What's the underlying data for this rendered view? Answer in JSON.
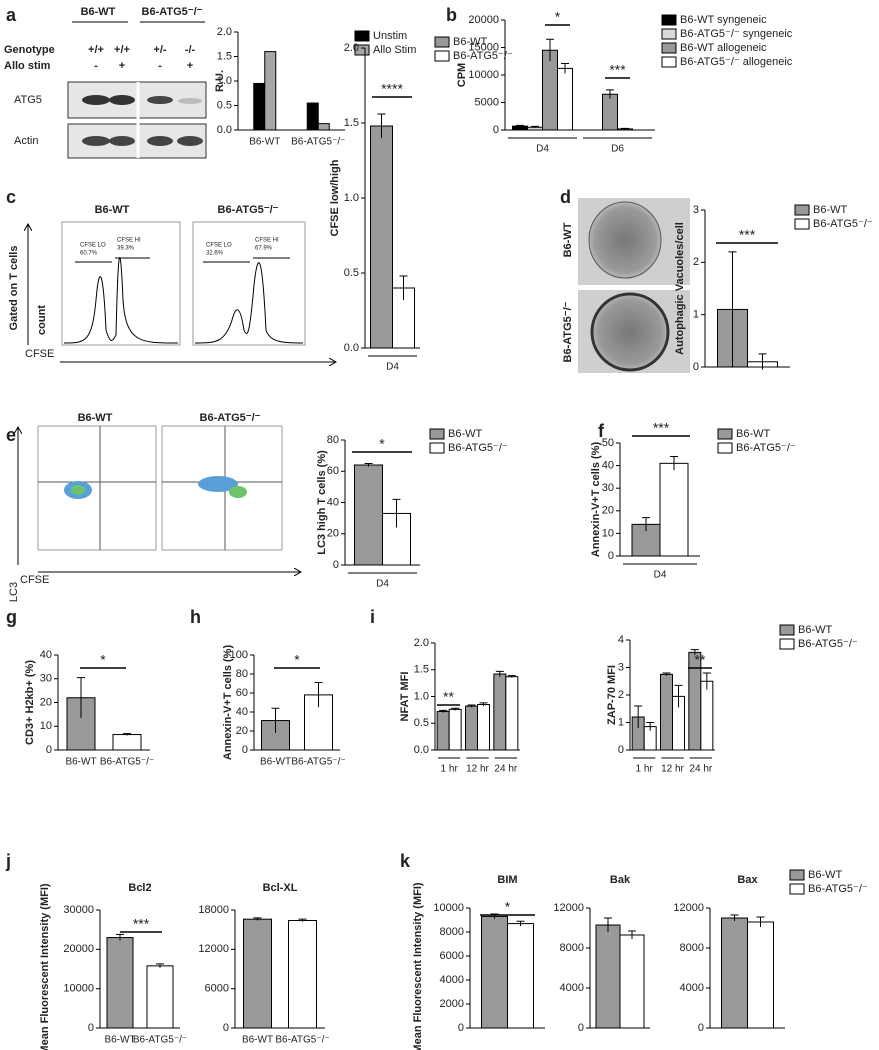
{
  "panel_labels": [
    "a",
    "b",
    "c",
    "d",
    "e",
    "f",
    "g",
    "h",
    "i",
    "j",
    "k"
  ],
  "blot": {
    "groups": [
      "B6-WT",
      "B6-ATG5⁻/⁻"
    ],
    "rows": [
      "Genotype",
      "Allo stim"
    ],
    "genotypes": [
      "+/+",
      "+/+",
      "+/-",
      "-/-"
    ],
    "stim": [
      "-",
      "+",
      "-",
      "+"
    ],
    "bands": [
      "ATG5",
      "Actin"
    ]
  },
  "flow_c": {
    "titles": [
      "B6-WT",
      "B6-ATG5⁻/⁻"
    ],
    "ylabel": "Gated on T cells",
    "ylabel2": "count",
    "xlabel": "CFSE",
    "gates": [
      "CFSE LO",
      "CFSE HI",
      "CFSE LO",
      "CFSE HI"
    ],
    "gate_values": [
      "60.7%",
      "39.3%",
      "32.6%",
      "67.9%"
    ]
  },
  "em_d": {
    "labels": [
      "B6-WT",
      "B6-ATG5⁻/⁻"
    ]
  },
  "flow_e": {
    "titles": [
      "B6-WT",
      "B6-ATG5⁻/⁻"
    ],
    "ylabel": "LC3",
    "xlabel": "CFSE"
  },
  "chart_data": [
    {
      "type": "bar",
      "ylabel": "R.U.",
      "categories": [
        "B6-WT",
        "B6-ATG5⁻/⁻"
      ],
      "series": [
        {
          "name": "Unstim",
          "color": "#000000",
          "values": [
            0.95,
            0.55
          ]
        },
        {
          "name": "Allo Stim",
          "color": "#a6a6a6",
          "values": [
            1.6,
            0.13
          ]
        }
      ],
      "ylim": [
        0,
        2
      ],
      "yticks": [
        {
          "value": 0,
          "label": "0.0"
        },
        0.5,
        {
          "value": 1,
          "label": "1.0"
        },
        1.5,
        {
          "value": 2,
          "label": "2.0"
        }
      ],
      "legend": "right"
    },
    {
      "type": "bar",
      "ylabel": "CPM",
      "categories": [
        "D4",
        "D6"
      ],
      "series": [
        {
          "name": "B6-WT syngeneic",
          "color": "#000000",
          "values": [
            700,
            null
          ],
          "errors": [
            150,
            null
          ]
        },
        {
          "name": "B6-ATG5⁻/⁻ syngeneic",
          "color": "#d9d9d9",
          "values": [
            500,
            null
          ],
          "errors": [
            150,
            null
          ]
        },
        {
          "name": "B6-WT allogeneic",
          "color": "#999999",
          "values": [
            14500,
            6500
          ],
          "errors": [
            2000,
            800
          ]
        },
        {
          "name": "B6-ATG5⁻/⁻ allogeneic",
          "color": "#ffffff",
          "values": [
            11200,
            200
          ],
          "errors": [
            900,
            100
          ]
        }
      ],
      "ylim": [
        0,
        20000
      ],
      "yticks": [
        0,
        5000,
        10000,
        15000,
        20000
      ],
      "legend": "right",
      "x_brackets": true,
      "annotations": [
        "*",
        "***"
      ]
    },
    {
      "type": "bar",
      "ylabel": "CFSE low/high",
      "categories": [
        "D4"
      ],
      "series": [
        {
          "name": "B6-WT",
          "color": "#999999",
          "values": [
            1.48
          ],
          "errors": [
            0.08
          ]
        },
        {
          "name": "B6-ATG5⁻/⁻",
          "color": "#ffffff",
          "values": [
            0.4
          ],
          "errors": [
            0.08
          ]
        }
      ],
      "ylim": [
        0,
        2
      ],
      "yticks": [
        {
          "value": 0,
          "label": "0.0"
        },
        0.5,
        {
          "value": 1,
          "label": "1.0"
        },
        1.5,
        {
          "value": 2,
          "label": "2.0"
        }
      ],
      "legend": "right",
      "x_brackets": true,
      "annotations": [
        "****"
      ]
    },
    {
      "type": "bar",
      "ylabel": "Autophagic Vacuoles/cell",
      "categories": [
        null
      ],
      "series": [
        {
          "name": "B6-WT",
          "color": "#999999",
          "values": [
            1.1
          ],
          "errors": [
            1.1
          ]
        },
        {
          "name": "B6-ATG5⁻/⁻",
          "color": "#ffffff",
          "values": [
            0.1
          ],
          "errors": [
            0.15
          ]
        }
      ],
      "ylim": [
        0,
        3
      ],
      "yticks": [
        0,
        1,
        2,
        3
      ],
      "legend": "right",
      "annotations": [
        "***"
      ]
    },
    {
      "type": "bar",
      "ylabel": "LC3 high T cells (%)",
      "categories": [
        "D4"
      ],
      "series": [
        {
          "name": "B6-WT",
          "color": "#999999",
          "values": [
            64
          ],
          "errors": [
            1
          ]
        },
        {
          "name": "B6-ATG5⁻/⁻",
          "color": "#ffffff",
          "values": [
            33
          ],
          "errors": [
            9
          ]
        }
      ],
      "ylim": [
        0,
        80
      ],
      "yticks": [
        0,
        20,
        40,
        60,
        80
      ],
      "legend": "right",
      "x_brackets": true,
      "annotations": [
        "*"
      ]
    },
    {
      "type": "bar",
      "ylabel": "Annexin-V+T cells (%)",
      "categories": [
        "D4"
      ],
      "series": [
        {
          "name": "B6-WT",
          "color": "#999999",
          "values": [
            14
          ],
          "errors": [
            3
          ]
        },
        {
          "name": "B6-ATG5⁻/⁻",
          "color": "#ffffff",
          "values": [
            41
          ],
          "errors": [
            3
          ]
        }
      ],
      "ylim": [
        0,
        50
      ],
      "yticks": [
        0,
        10,
        20,
        30,
        40,
        50
      ],
      "legend": "right",
      "x_brackets": true,
      "annotations": [
        "***"
      ]
    },
    {
      "type": "bar",
      "ylabel": "CD3+ H2kb+ (%)",
      "categories": [
        "B6-WT",
        "B6-ATG5⁻/⁻"
      ],
      "values": [
        22,
        6.5
      ],
      "errors": [
        8.5,
        0.4
      ],
      "colors": [
        "#999999",
        "#ffffff"
      ],
      "ylim": [
        0,
        40
      ],
      "yticks": [
        0,
        10,
        20,
        30,
        40
      ],
      "annotations": [
        "*"
      ]
    },
    {
      "type": "bar",
      "ylabel": "Annexin-V+T cells (%)",
      "categories": [
        "B6-WT",
        "B6-ATG5⁻/⁻"
      ],
      "values": [
        31,
        58
      ],
      "errors": [
        13,
        13
      ],
      "colors": [
        "#999999",
        "#ffffff"
      ],
      "ylim": [
        0,
        100
      ],
      "yticks": [
        0,
        20,
        40,
        60,
        80,
        100
      ],
      "annotations": [
        "*"
      ]
    },
    {
      "type": "bar",
      "ylabel": "NFAT MFI",
      "categories": [
        "1 hr",
        "12 hr",
        "24 hr"
      ],
      "series": [
        {
          "name": "B6-WT",
          "color": "#999999",
          "values": [
            0.72,
            0.82,
            1.42
          ],
          "errors": [
            0.02,
            0.02,
            0.05
          ]
        },
        {
          "name": "B6-ATG5⁻/⁻",
          "color": "#ffffff",
          "values": [
            0.76,
            0.85,
            1.37
          ],
          "errors": [
            0.02,
            0.03,
            0.02
          ]
        }
      ],
      "ylim": [
        0,
        2
      ],
      "yticks": [
        {
          "value": 0,
          "label": "0.0"
        },
        0.5,
        {
          "value": 1,
          "label": "1.0"
        },
        1.5,
        {
          "value": 2,
          "label": "2.0"
        }
      ],
      "x_brackets": true,
      "annotations": [
        "**"
      ]
    },
    {
      "type": "bar",
      "ylabel": "ZAP-70 MFI",
      "categories": [
        "1 hr",
        "12 hr",
        "24 hr"
      ],
      "series": [
        {
          "name": "B6-WT",
          "color": "#999999",
          "values": [
            1.2,
            2.75,
            3.55
          ],
          "errors": [
            0.4,
            0.05,
            0.1
          ]
        },
        {
          "name": "B6-ATG5⁻/⁻",
          "color": "#ffffff",
          "values": [
            0.85,
            1.95,
            2.5
          ],
          "errors": [
            0.15,
            0.4,
            0.3
          ]
        }
      ],
      "ylim": [
        0,
        4
      ],
      "yticks": [
        0,
        1,
        2,
        3,
        4
      ],
      "legend": "right",
      "x_brackets": true,
      "annotations": [
        "**"
      ]
    },
    {
      "type": "bar",
      "title": "Bcl2",
      "ylabel": "Mean Fluorescent Intensity (MFI)",
      "categories": [
        "B6-WT",
        "B6-ATG5⁻/⁻"
      ],
      "values": [
        23000,
        15800
      ],
      "errors": [
        800,
        500
      ],
      "colors": [
        "#999999",
        "#ffffff"
      ],
      "ylim": [
        0,
        30000
      ],
      "yticks": [
        0,
        10000,
        20000,
        30000
      ],
      "annotations": [
        "***"
      ]
    },
    {
      "type": "bar",
      "title": "Bcl-XL",
      "categories": [
        "B6-WT",
        "B6-ATG5⁻/⁻"
      ],
      "values": [
        16600,
        16400
      ],
      "errors": [
        200,
        200
      ],
      "colors": [
        "#999999",
        "#ffffff"
      ],
      "ylim": [
        0,
        18000
      ],
      "yticks": [
        0,
        6000,
        12000,
        18000
      ]
    },
    {
      "type": "bar",
      "title": "BIM",
      "ylabel": "Mean Fluorescent Intensity (MFI)",
      "categories": [
        null
      ],
      "series": [
        {
          "name": "B6-WT",
          "color": "#999999",
          "values": [
            9300
          ],
          "errors": [
            200
          ]
        },
        {
          "name": "B6-ATG5⁻/⁻",
          "color": "#ffffff",
          "values": [
            8700
          ],
          "errors": [
            200
          ]
        }
      ],
      "ylim": [
        0,
        10000
      ],
      "yticks": [
        0,
        2000,
        4000,
        6000,
        8000,
        10000
      ],
      "annotations": [
        "*"
      ]
    },
    {
      "type": "bar",
      "title": "Bak",
      "categories": [
        null
      ],
      "series": [
        {
          "name": "B6-WT",
          "color": "#999999",
          "values": [
            10300
          ],
          "errors": [
            700
          ]
        },
        {
          "name": "B6-ATG5⁻/⁻",
          "color": "#ffffff",
          "values": [
            9300
          ],
          "errors": [
            400
          ]
        }
      ],
      "ylim": [
        0,
        12000
      ],
      "yticks": [
        0,
        4000,
        8000,
        12000
      ]
    },
    {
      "type": "bar",
      "title": "Bax",
      "categories": [
        null
      ],
      "series": [
        {
          "name": "B6-WT",
          "color": "#999999",
          "values": [
            11000
          ],
          "errors": [
            300
          ]
        },
        {
          "name": "B6-ATG5⁻/⁻",
          "color": "#ffffff",
          "values": [
            10600
          ],
          "errors": [
            500
          ]
        }
      ],
      "ylim": [
        0,
        12000
      ],
      "yticks": [
        0,
        4000,
        8000,
        12000
      ],
      "legend": "right"
    }
  ]
}
